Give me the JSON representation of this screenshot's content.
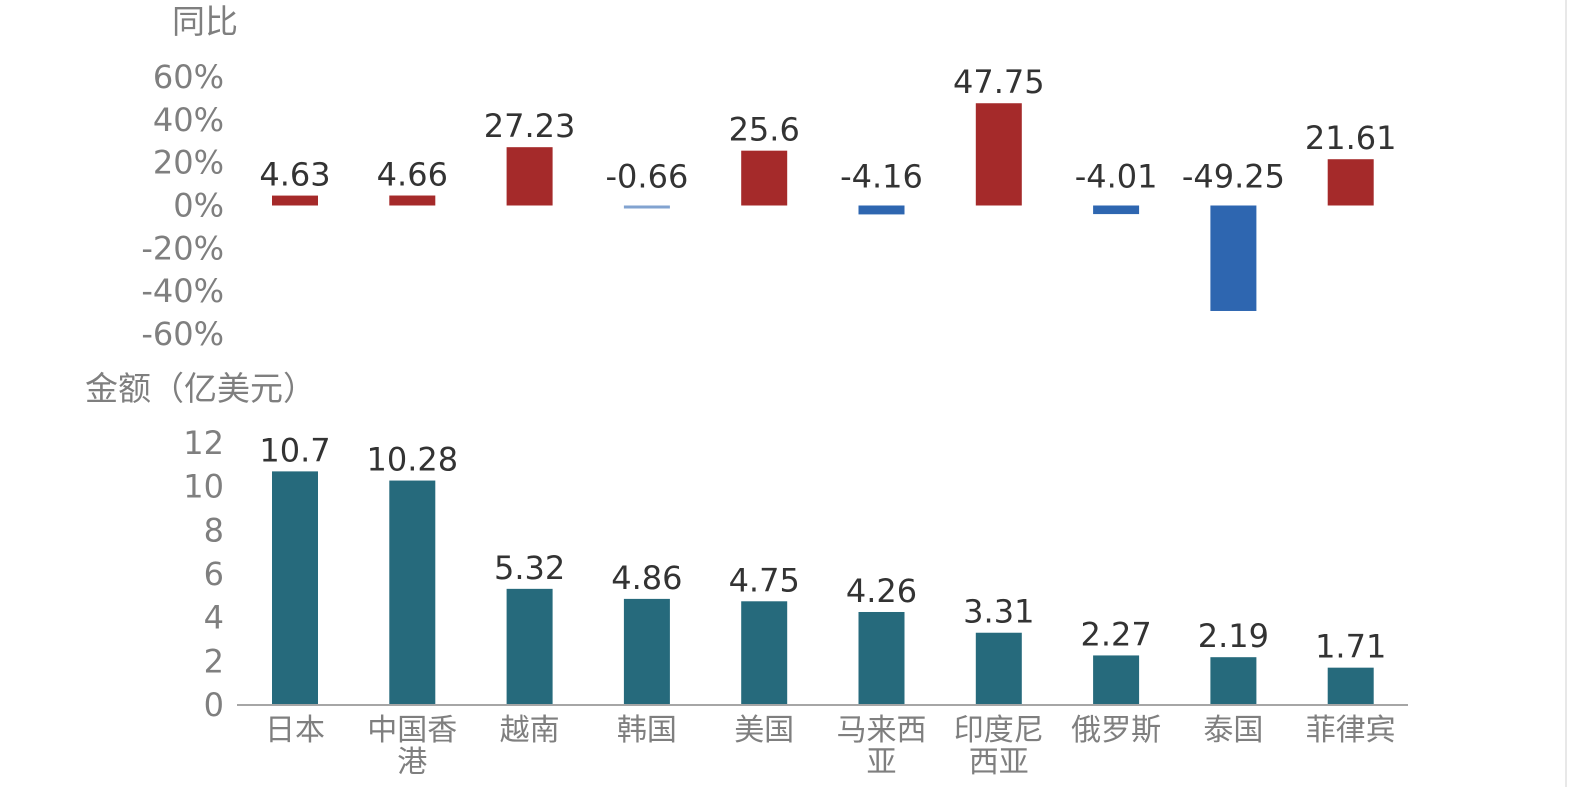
{
  "chart_data": [
    {
      "type": "bar",
      "ylabel": "同比",
      "categories": [
        "日本",
        "中国香港",
        "越南",
        "韩国",
        "美国",
        "马来西亚",
        "印度尼西亚",
        "俄罗斯",
        "泰国",
        "菲律宾"
      ],
      "values": [
        4.63,
        4.66,
        27.23,
        -0.66,
        25.6,
        -4.16,
        47.75,
        -4.01,
        -49.25,
        21.61
      ],
      "data_labels": [
        "4.63",
        "4.66",
        "27.23",
        "-0.66",
        "25.6",
        "-4.16",
        "47.75",
        "-4.01",
        "-49.25",
        "21.61"
      ],
      "ylim": [
        -60,
        60
      ],
      "yticks": [
        "60%",
        "40%",
        "20%",
        "0%",
        "-20%",
        "-40%",
        "-60%"
      ],
      "colors": {
        "positive": "#a52a2a",
        "negative": "#2e66b0"
      },
      "grid": false
    },
    {
      "type": "bar",
      "ylabel": "金额（亿美元）",
      "categories": [
        "日本",
        "中国香港",
        "越南",
        "韩国",
        "美国",
        "马来西亚",
        "印度尼西亚",
        "俄罗斯",
        "泰国",
        "菲律宾"
      ],
      "category_label_lines": [
        [
          "日本"
        ],
        [
          "中国香",
          "港"
        ],
        [
          "越南"
        ],
        [
          "韩国"
        ],
        [
          "美国"
        ],
        [
          "马来西",
          "亚"
        ],
        [
          "印度尼",
          "西亚"
        ],
        [
          "俄罗斯"
        ],
        [
          "泰国"
        ],
        [
          "菲律宾"
        ]
      ],
      "values": [
        10.7,
        10.28,
        5.32,
        4.86,
        4.75,
        4.26,
        3.31,
        2.27,
        2.19,
        1.71
      ],
      "data_labels": [
        "10.7",
        "10.28",
        "5.32",
        "4.86",
        "4.75",
        "4.26",
        "3.31",
        "2.27",
        "2.19",
        "1.71"
      ],
      "ylim": [
        0,
        12
      ],
      "yticks": [
        "12",
        "10",
        "8",
        "6",
        "4",
        "2",
        "0"
      ],
      "colors": {
        "bar": "#266a7c"
      },
      "grid": false
    }
  ]
}
